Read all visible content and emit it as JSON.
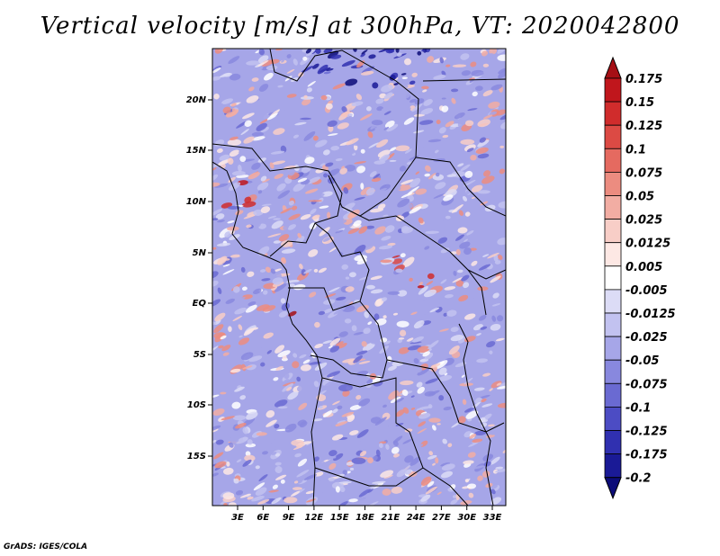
{
  "title": "Vertical velocity [m/s] at 300hPa, VT: 2020042800",
  "credit": "GrADS: IGES/COLA",
  "map": {
    "lat_labels": [
      "20N",
      "15N",
      "10N",
      "5N",
      "EQ",
      "5S",
      "10S",
      "15S"
    ],
    "lon_labels": [
      "3E",
      "6E",
      "9E",
      "12E",
      "15E",
      "18E",
      "21E",
      "24E",
      "27E",
      "30E",
      "33E"
    ]
  },
  "colorbar": {
    "levels": [
      "0.175",
      "0.15",
      "0.125",
      "0.1",
      "0.075",
      "0.05",
      "0.025",
      "0.0125",
      "0.005",
      "-0.005",
      "-0.0125",
      "-0.025",
      "-0.05",
      "-0.075",
      "-0.1",
      "-0.125",
      "-0.175",
      "-0.2"
    ],
    "colors": [
      "#a50f15",
      "#c0161c",
      "#d02c2c",
      "#dc4a44",
      "#e56a60",
      "#ec8c80",
      "#f2ada3",
      "#f8cec7",
      "#fde8e4",
      "#ffffff",
      "#dcdcf6",
      "#c2c2f0",
      "#a6a6e8",
      "#8888de",
      "#6a6ad2",
      "#4c4cc4",
      "#3030b0",
      "#1a1a96",
      "#0c0c78"
    ]
  }
}
